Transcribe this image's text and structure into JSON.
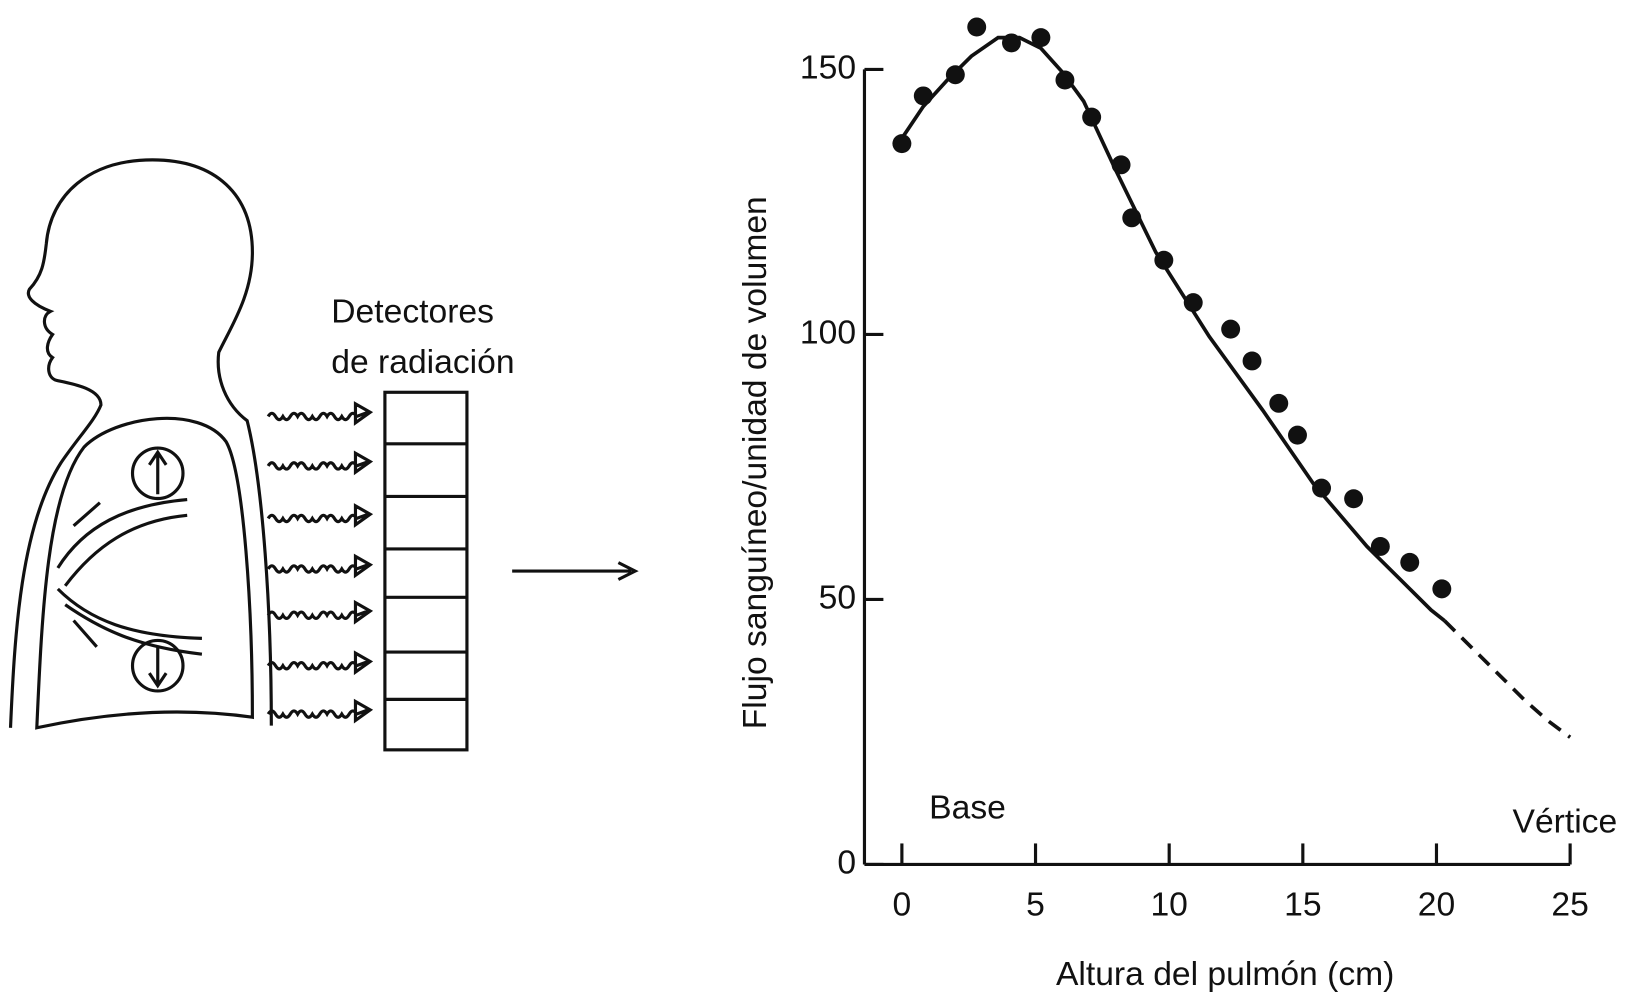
{
  "diagram": {
    "detector_label": [
      "Detectores",
      "de radiación"
    ]
  },
  "chart_data": {
    "type": "scatter",
    "x_label": "Altura del pulmón (cm)",
    "y_label": "Flujo sanguíneo/unidad de volumen",
    "annotations": [
      "Base",
      "Vértice"
    ],
    "x": [
      0,
      0.8,
      2.0,
      2.8,
      4.1,
      5.2,
      6.1,
      7.1,
      8.2,
      8.6,
      9.8,
      10.9,
      12.3,
      13.1,
      14.1,
      14.8,
      15.7,
      16.9,
      17.9,
      19.0,
      20.2
    ],
    "values": [
      136,
      145,
      149,
      158,
      155,
      156,
      148,
      141,
      132,
      122,
      114,
      106,
      101,
      95,
      87,
      81,
      71,
      69,
      60,
      57,
      52
    ],
    "color": "#111111",
    "fit": {
      "x": [
        0,
        0.8,
        1.7,
        2.6,
        3.6,
        4.4,
        5.2,
        6.0,
        6.8,
        8.0,
        9.5,
        11.5,
        13.5,
        15.4,
        17.4,
        19.8,
        20.3
      ],
      "values": [
        137,
        143,
        148,
        152.5,
        156,
        156,
        154,
        149.5,
        144,
        131,
        115.5,
        99.6,
        85.7,
        71.8,
        60,
        48,
        46
      ],
      "style": "solid"
    },
    "extrapolation": {
      "x": [
        20.3,
        21.3,
        22.3,
        23.3,
        24.2,
        25
      ],
      "values": [
        46,
        41,
        36,
        31,
        27,
        24
      ],
      "style": "dashed"
    },
    "xlim": [
      -1.4,
      25
    ],
    "ylim": [
      0,
      150
    ],
    "xticks": [
      0,
      5,
      10,
      15,
      20,
      25
    ],
    "yticks": [
      0,
      50,
      100,
      150
    ]
  }
}
